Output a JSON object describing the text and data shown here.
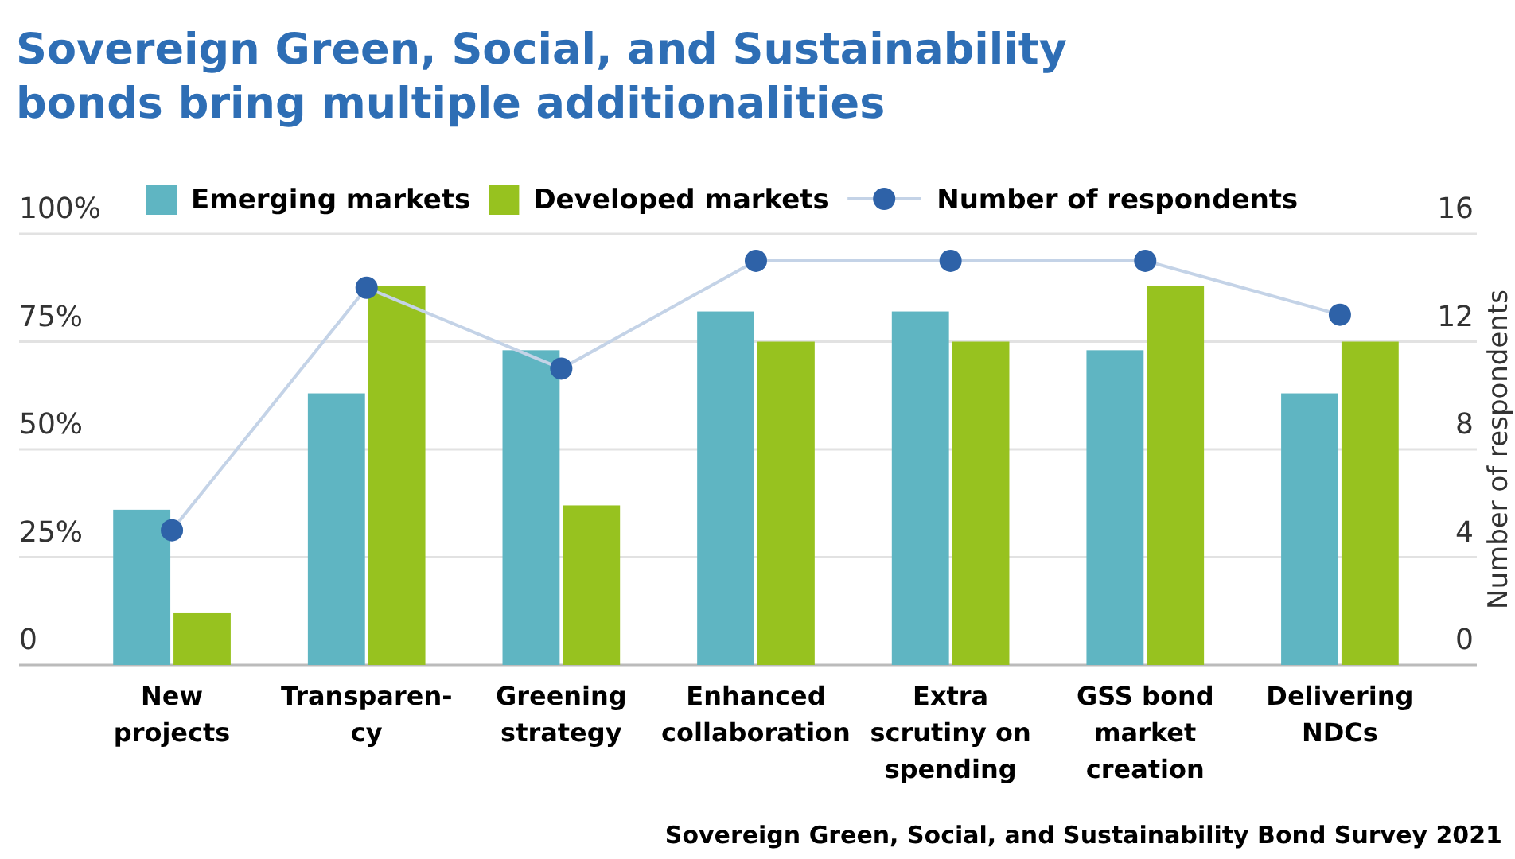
{
  "chart_data": {
    "type": "bar",
    "title": "Sovereign Green, Social, and Sustainability\nbonds bring multiple additionalities",
    "categories": [
      "New\nprojects",
      "Transparen-\ncy",
      "Greening\nstrategy",
      "Enhanced\ncollaboration",
      "Extra\nscrutiny on\nspending",
      "GSS bond\nmarket\ncreation",
      "Delivering\nNDCs"
    ],
    "series": [
      {
        "name": "Emerging markets",
        "color": "#5fb5c2",
        "values": [
          36,
          63,
          73,
          82,
          82,
          73,
          63
        ]
      },
      {
        "name": "Developed markets",
        "color": "#97c21f",
        "values": [
          12,
          88,
          37,
          75,
          75,
          88,
          75
        ]
      },
      {
        "name": "Number of respondents",
        "type": "line",
        "axis": "y2",
        "color": "#2e62a8",
        "marker": "circle",
        "values": [
          5,
          14,
          11,
          15,
          15,
          15,
          13
        ]
      }
    ],
    "ylim": [
      0,
      100
    ],
    "yticks": [
      {
        "value": 0,
        "label": "0"
      },
      {
        "value": 25,
        "label": "25%"
      },
      {
        "value": 50,
        "label": "50%"
      },
      {
        "value": 75,
        "label": "75%"
      },
      {
        "value": 100,
        "label": "100%"
      }
    ],
    "y2lim": [
      0,
      16
    ],
    "y2ticks": [
      0,
      4,
      8,
      12,
      16
    ],
    "y2label": "Number of respondents",
    "grid": "y",
    "legend": "top",
    "annotations": [
      "Sovereign Green, Social, and Sustainability Bond Survey 2021"
    ]
  }
}
